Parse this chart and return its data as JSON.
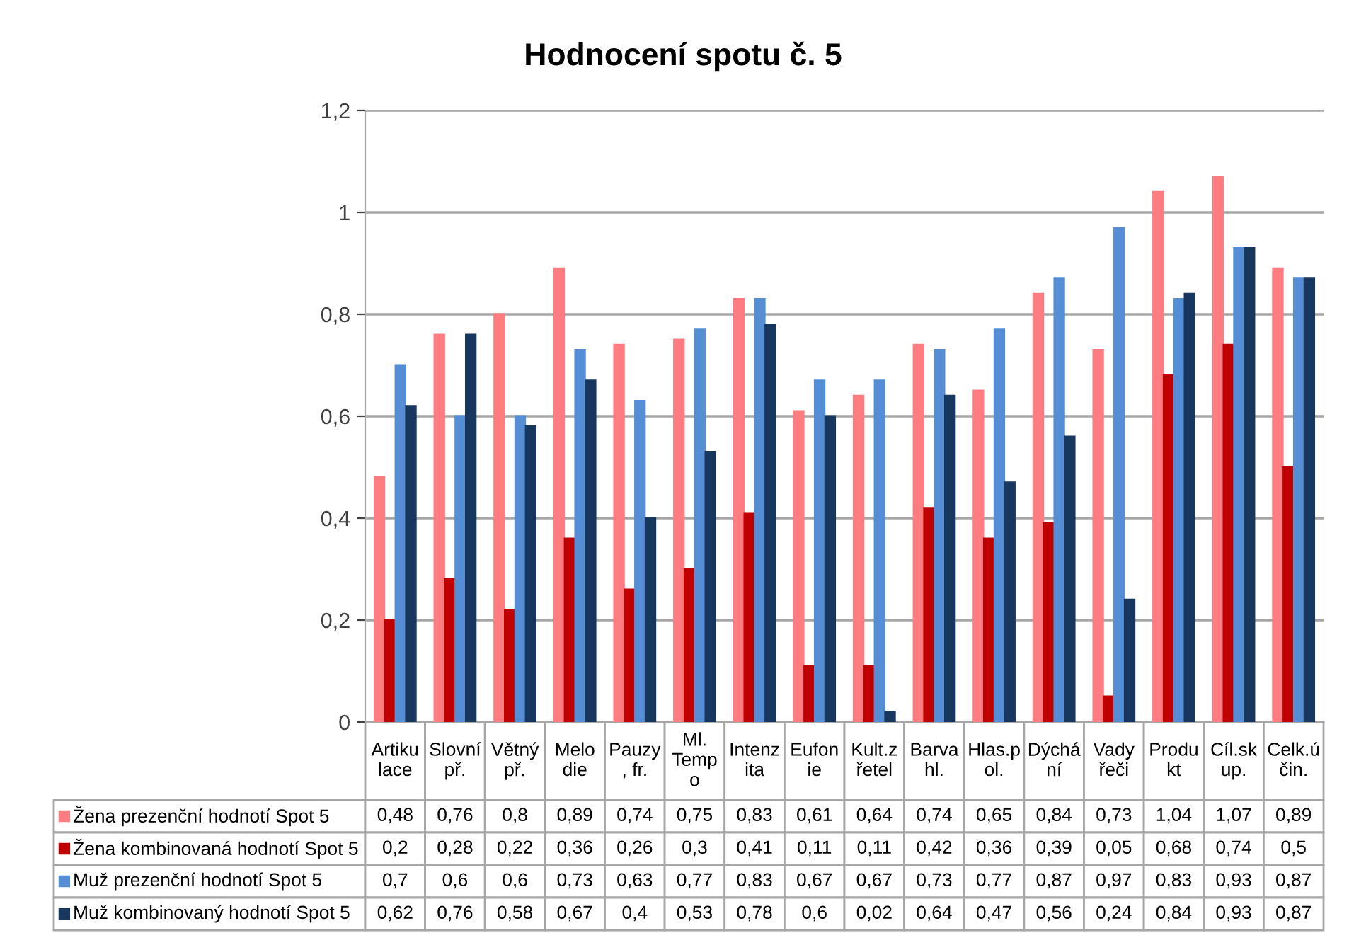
{
  "chart_data": {
    "type": "bar",
    "title": "Hodnocení spotu č. 5",
    "categories": [
      "Artiku\nlace",
      "Slovní\npř.",
      "Větný\npř.",
      "Melo\ndie",
      "Pauzy\n, fr.",
      "Ml.\nTemp\no",
      "Intenz\nita",
      "Eufon\nie",
      "Kult.z\nřetel",
      "Barva\nhl.",
      "Hlas.p\nol.",
      "Dýchá\nní",
      "Vady\nřeči",
      "Produ\nkt",
      "Cíl.sk\nup.",
      "Celk.ú\nčin."
    ],
    "series": [
      {
        "name": "Žena prezenční hodnotí Spot 5",
        "color": "#ff7c80",
        "values": [
          0.48,
          0.76,
          0.8,
          0.89,
          0.74,
          0.75,
          0.83,
          0.61,
          0.64,
          0.74,
          0.65,
          0.84,
          0.73,
          1.04,
          1.07,
          0.89
        ],
        "value_labels": [
          "0,48",
          "0,76",
          "0,8",
          "0,89",
          "0,74",
          "0,75",
          "0,83",
          "0,61",
          "0,64",
          "0,74",
          "0,65",
          "0,84",
          "0,73",
          "1,04",
          "1,07",
          "0,89"
        ]
      },
      {
        "name": "Žena kombinovaná hodnotí Spot 5",
        "color": "#c00000",
        "values": [
          0.2,
          0.28,
          0.22,
          0.36,
          0.26,
          0.3,
          0.41,
          0.11,
          0.11,
          0.42,
          0.36,
          0.39,
          0.05,
          0.68,
          0.74,
          0.5
        ],
        "value_labels": [
          "0,2",
          "0,28",
          "0,22",
          "0,36",
          "0,26",
          "0,3",
          "0,41",
          "0,11",
          "0,11",
          "0,42",
          "0,36",
          "0,39",
          "0,05",
          "0,68",
          "0,74",
          "0,5"
        ]
      },
      {
        "name": "Muž prezenční hodnotí Spot 5",
        "color": "#558ed5",
        "values": [
          0.7,
          0.6,
          0.6,
          0.73,
          0.63,
          0.77,
          0.83,
          0.67,
          0.67,
          0.73,
          0.77,
          0.87,
          0.97,
          0.83,
          0.93,
          0.87
        ],
        "value_labels": [
          "0,7",
          "0,6",
          "0,6",
          "0,73",
          "0,63",
          "0,77",
          "0,83",
          "0,67",
          "0,67",
          "0,73",
          "0,77",
          "0,87",
          "0,97",
          "0,83",
          "0,93",
          "0,87"
        ]
      },
      {
        "name": "Muž kombinovaný hodnotí Spot 5",
        "color": "#17375e",
        "values": [
          0.62,
          0.76,
          0.58,
          0.67,
          0.4,
          0.53,
          0.78,
          0.6,
          0.02,
          0.64,
          0.47,
          0.56,
          0.24,
          0.84,
          0.93,
          0.87
        ],
        "value_labels": [
          "0,62",
          "0,76",
          "0,58",
          "0,67",
          "0,4",
          "0,53",
          "0,78",
          "0,6",
          "0,02",
          "0,64",
          "0,47",
          "0,56",
          "0,24",
          "0,84",
          "0,93",
          "0,87"
        ]
      }
    ],
    "ylim": [
      0,
      1.2
    ],
    "yticks": [
      0,
      {
        "value": 0.2,
        "label": "0,2"
      },
      {
        "value": 0.4,
        "label": "0,4"
      },
      {
        "value": 0.6,
        "label": "0,6"
      },
      {
        "value": 0.8,
        "label": "0,8"
      },
      1,
      {
        "value": 1.2,
        "label": "1,2"
      }
    ],
    "grid": "y",
    "legend": "bottom"
  }
}
